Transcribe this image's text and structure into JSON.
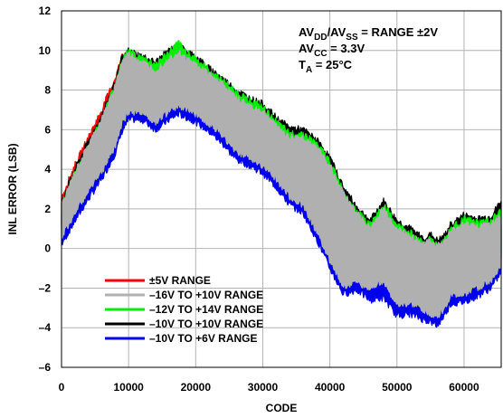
{
  "chart_data": {
    "type": "line",
    "title": "",
    "xlabel": "CODE",
    "ylabel": "INL ERROR (LSB)",
    "xlim": [
      0,
      65535
    ],
    "ylim": [
      -6,
      12
    ],
    "xticks": [
      0,
      10000,
      20000,
      30000,
      40000,
      50000,
      60000
    ],
    "yticks": [
      -6,
      -4,
      -2,
      0,
      2,
      4,
      6,
      8,
      10,
      12
    ],
    "xtick_labels": [
      "0",
      "10000",
      "20000",
      "30000",
      "40000",
      "50000",
      "60000"
    ],
    "ytick_labels": [
      "–6",
      "–4",
      "–2",
      "0",
      "2",
      "4",
      "6",
      "8",
      "10",
      "12"
    ],
    "grid": true,
    "legend_position": "bottom-left",
    "annotations": [
      {
        "main": "AV",
        "sub": "DD",
        "mid": "/AV",
        "sub2": "SS",
        "tail": " = RANGE ±2V"
      },
      {
        "main": "AV",
        "sub": "CC",
        "mid": " = 3.3V",
        "sub2": "",
        "tail": ""
      },
      {
        "main": "T",
        "sub": "A",
        "mid": " = 25°C",
        "sub2": "",
        "tail": ""
      }
    ],
    "series": [
      {
        "name": "±5V RANGE",
        "color": "#ff0000",
        "x": [
          0,
          2000,
          4000,
          6000,
          8000,
          9000
        ],
        "upper": [
          2.6,
          4.2,
          5.6,
          7.0,
          8.6,
          9.7
        ],
        "lower": [
          1.0,
          2.4,
          3.6,
          4.8,
          6.0,
          6.8
        ]
      },
      {
        "name": "–16V TO +10V RANGE",
        "color": "#b0b0b0",
        "x": [
          0,
          2000,
          4000,
          6000,
          8000,
          9000,
          10000,
          12000,
          14000,
          16000,
          17500,
          18000,
          20000,
          22000,
          24000,
          26000,
          28000,
          30000,
          32000,
          34000,
          36000,
          38000,
          40000,
          42000,
          44000,
          46000,
          48000,
          50000,
          52000,
          54000,
          55000,
          56000,
          57000,
          58000,
          60000,
          62000,
          64000,
          65535
        ],
        "upper": [
          2.2,
          3.8,
          5.2,
          6.5,
          8.2,
          9.4,
          9.8,
          9.4,
          9.0,
          9.6,
          9.9,
          9.7,
          9.3,
          8.8,
          8.3,
          7.6,
          7.2,
          6.9,
          6.2,
          5.6,
          5.6,
          5.1,
          4.2,
          2.8,
          1.8,
          1.0,
          2.0,
          1.0,
          0.6,
          0.2,
          0.4,
          0.1,
          0.3,
          0.8,
          1.3,
          1.1,
          1.2,
          1.7
        ],
        "lower": [
          0.6,
          1.8,
          2.9,
          3.9,
          5.2,
          6.3,
          6.9,
          6.9,
          6.4,
          6.9,
          7.2,
          7.1,
          6.8,
          6.3,
          5.7,
          4.9,
          4.6,
          4.2,
          3.5,
          2.6,
          2.2,
          0.9,
          -0.6,
          -1.9,
          -1.7,
          -2.0,
          -1.6,
          -2.9,
          -2.8,
          -3.1,
          -3.3,
          -3.5,
          -3.0,
          -2.4,
          -2.3,
          -2.0,
          -1.6,
          -0.8
        ]
      },
      {
        "name": "–12V TO +14V RANGE",
        "color": "#00ee00",
        "x": [
          0,
          2000,
          4000,
          6000,
          8000,
          9000,
          10000,
          12000,
          14000,
          16000,
          17500,
          18000,
          20000,
          22000,
          24000,
          26000,
          28000,
          30000,
          32000,
          34000,
          36000,
          38000,
          40000,
          42000,
          44000,
          46000,
          48000,
          50000,
          52000,
          54000,
          55000,
          56000,
          57000,
          58000,
          60000,
          62000,
          64000,
          65535
        ],
        "upper": [
          2.2,
          3.8,
          5.2,
          6.5,
          8.3,
          9.5,
          10.0,
          9.6,
          9.3,
          9.9,
          10.4,
          10.1,
          9.6,
          9.0,
          8.5,
          7.9,
          7.5,
          7.1,
          6.4,
          5.8,
          5.8,
          5.3,
          4.4,
          2.9,
          1.9,
          1.2,
          2.2,
          1.2,
          0.8,
          0.3,
          0.5,
          0.2,
          0.4,
          1.0,
          1.5,
          1.3,
          1.4,
          1.9
        ],
        "lower": [
          0.9,
          2.4,
          3.6,
          4.8,
          6.0,
          7.0,
          7.4,
          7.4,
          6.9,
          7.4,
          7.6,
          7.5,
          7.2,
          6.7,
          6.1,
          5.3,
          5.0,
          4.6,
          3.9,
          3.0,
          2.6,
          1.4,
          -0.1,
          -1.4,
          -1.2,
          -1.5,
          -1.1,
          -2.3,
          -2.2,
          -2.5,
          -2.7,
          -2.9,
          -2.4,
          -1.8,
          -1.7,
          -1.4,
          -1.0,
          -0.2
        ]
      },
      {
        "name": "–10V TO +10V RANGE",
        "color": "#000000",
        "x": [
          0,
          2000,
          4000,
          6000,
          8000,
          9000,
          10000,
          12000,
          14000,
          16000,
          17500,
          18000,
          20000,
          22000,
          24000,
          26000,
          28000,
          30000,
          32000,
          34000,
          36000,
          38000,
          40000,
          42000,
          44000,
          46000,
          48000,
          50000,
          52000,
          54000,
          55000,
          56000,
          57000,
          58000,
          60000,
          62000,
          64000,
          65535
        ],
        "upper": [
          2.4,
          4.0,
          5.4,
          6.7,
          8.4,
          9.6,
          10.0,
          9.7,
          9.4,
          10.0,
          10.3,
          10.1,
          9.7,
          9.1,
          8.6,
          8.0,
          7.6,
          7.3,
          6.6,
          6.1,
          6.0,
          5.5,
          4.6,
          3.1,
          2.1,
          1.4,
          2.4,
          1.4,
          1.0,
          0.5,
          0.7,
          0.4,
          0.6,
          1.2,
          1.7,
          1.5,
          1.6,
          2.4
        ],
        "lower": [
          0.8,
          2.2,
          3.3,
          4.5,
          5.8,
          6.8,
          7.2,
          7.2,
          6.7,
          7.2,
          7.4,
          7.3,
          7.0,
          6.5,
          5.9,
          5.1,
          4.8,
          4.4,
          3.7,
          2.8,
          2.4,
          1.1,
          -0.4,
          -1.7,
          -1.5,
          -1.8,
          -1.4,
          -2.7,
          -2.6,
          -2.9,
          -3.1,
          -3.3,
          -2.8,
          -2.2,
          -2.1,
          -1.8,
          -1.4,
          -0.6
        ]
      },
      {
        "name": "–10V TO +6V RANGE",
        "color": "#0000ee",
        "x": [
          0,
          2000,
          4000,
          6000,
          8000,
          9000,
          10000,
          12000,
          14000,
          16000,
          17500,
          18000,
          20000,
          22000,
          24000,
          26000,
          28000,
          30000,
          32000,
          34000,
          36000,
          38000,
          40000,
          42000,
          44000,
          46000,
          48000,
          50000,
          52000,
          54000,
          55000,
          56000,
          57000,
          58000,
          60000,
          62000,
          64000,
          65535
        ],
        "upper": [
          1.8,
          3.4,
          4.7,
          6.0,
          7.8,
          9.0,
          9.4,
          9.0,
          8.6,
          9.2,
          9.5,
          9.3,
          8.9,
          8.4,
          7.9,
          7.2,
          6.8,
          6.5,
          5.8,
          5.2,
          5.2,
          4.7,
          3.8,
          2.4,
          1.4,
          0.6,
          1.6,
          0.6,
          0.2,
          -0.2,
          0.0,
          -0.3,
          -0.1,
          0.4,
          0.9,
          0.7,
          0.8,
          1.3
        ],
        "lower": [
          0.2,
          1.4,
          2.5,
          3.5,
          4.8,
          5.9,
          6.5,
          6.5,
          6.0,
          6.5,
          6.8,
          6.7,
          6.4,
          5.9,
          5.3,
          4.5,
          4.2,
          3.8,
          3.1,
          2.2,
          1.8,
          0.5,
          -1.0,
          -2.3,
          -2.1,
          -2.6,
          -2.5,
          -3.4,
          -3.3,
          -3.6,
          -3.7,
          -3.9,
          -3.4,
          -2.8,
          -2.7,
          -2.4,
          -2.0,
          -1.2
        ]
      }
    ]
  }
}
